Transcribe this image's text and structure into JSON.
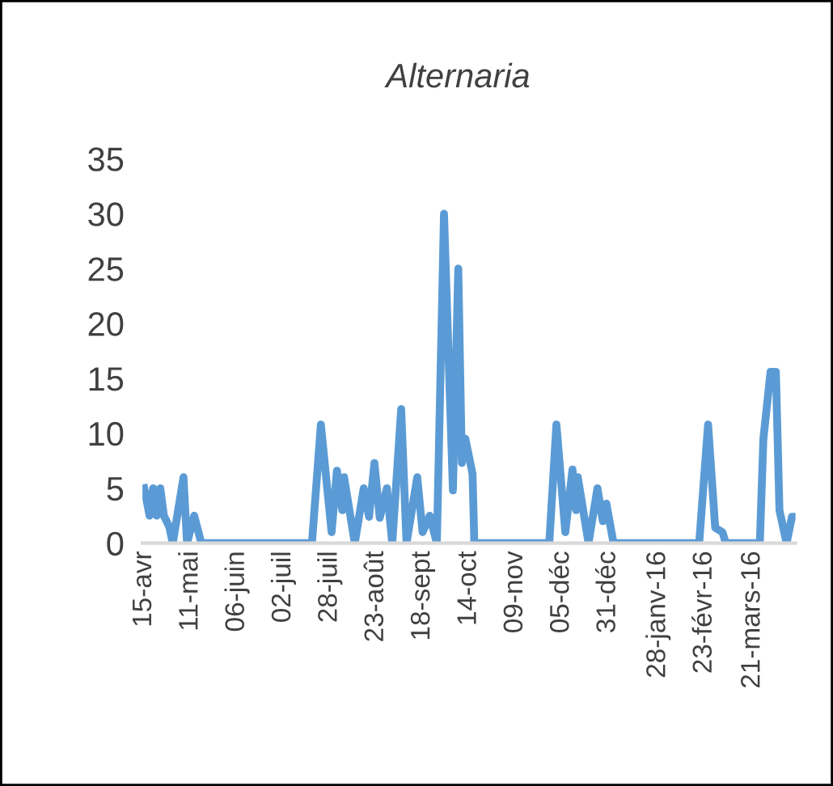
{
  "chart_data": {
    "type": "line",
    "title": "Alternaria",
    "x": [
      "2015-04-15",
      "2015-04-18",
      "2015-04-20",
      "2015-04-22",
      "2015-04-24",
      "2015-04-26",
      "2015-04-29",
      "2015-05-01",
      "2015-05-07",
      "2015-05-09",
      "2015-05-13",
      "2015-05-17",
      "2015-07-18",
      "2015-07-23",
      "2015-07-29",
      "2015-08-01",
      "2015-08-04",
      "2015-08-05",
      "2015-08-11",
      "2015-08-16",
      "2015-08-19",
      "2015-08-22",
      "2015-08-25",
      "2015-08-29",
      "2015-09-01",
      "2015-09-06",
      "2015-09-09",
      "2015-09-15",
      "2015-09-18",
      "2015-09-22",
      "2015-09-26",
      "2015-09-30",
      "2015-10-05",
      "2015-10-08",
      "2015-10-10",
      "2015-10-12",
      "2015-10-16",
      "2015-10-17",
      "2015-11-28",
      "2015-12-02",
      "2015-12-07",
      "2015-12-11",
      "2015-12-13",
      "2015-12-14",
      "2015-12-20",
      "2015-12-25",
      "2015-12-28",
      "2015-12-30",
      "2016-01-03",
      "2016-02-20",
      "2016-02-25",
      "2016-02-29",
      "2016-03-04",
      "2016-03-06",
      "2016-03-25",
      "2016-03-27",
      "2016-03-31",
      "2016-04-03",
      "2016-04-05",
      "2016-04-09",
      "2016-04-12",
      "2016-04-14"
    ],
    "series": [
      {
        "color": "#5b9bd5",
        "values": [
          5,
          2.5,
          5,
          2.5,
          5,
          2.5,
          1.5,
          0,
          6,
          0,
          2.5,
          0,
          0,
          10.8,
          1,
          6.6,
          3,
          6,
          0,
          5,
          2.4,
          7.3,
          2.3,
          5,
          0,
          12.2,
          0,
          6,
          1,
          2.5,
          0,
          30,
          4.8,
          25,
          7.3,
          9.5,
          6.3,
          0,
          0,
          10.8,
          1,
          6.7,
          3,
          6,
          0,
          5,
          2,
          3.6,
          0,
          0,
          10.8,
          1.4,
          1,
          0,
          0,
          9.5,
          15.6,
          15.6,
          3,
          0,
          2.4,
          2.4
        ]
      }
    ],
    "xlim": [
      "2015-04-14",
      "2016-04-14"
    ],
    "xticks": [
      {
        "value": "2015-04-15",
        "label": "15-avr"
      },
      {
        "value": "2015-05-11",
        "label": "11-mai"
      },
      {
        "value": "2015-06-06",
        "label": "06-juin"
      },
      {
        "value": "2015-07-02",
        "label": "02-juil"
      },
      {
        "value": "2015-07-28",
        "label": "28-juil"
      },
      {
        "value": "2015-08-23",
        "label": "23-août"
      },
      {
        "value": "2015-09-18",
        "label": "18-sept"
      },
      {
        "value": "2015-10-14",
        "label": "14-oct"
      },
      {
        "value": "2015-11-09",
        "label": "09-nov"
      },
      {
        "value": "2015-12-05",
        "label": "05-déc"
      },
      {
        "value": "2015-12-31",
        "label": "31-déc"
      },
      {
        "value": "2016-01-28",
        "label": "28-janv-16"
      },
      {
        "value": "2016-02-23",
        "label": "23-févr-16"
      },
      {
        "value": "2016-03-21",
        "label": "21-mars-16"
      }
    ],
    "ylim": [
      0,
      35
    ],
    "yticks": [
      0,
      5,
      10,
      15,
      20,
      25,
      30,
      35
    ],
    "grid": false,
    "marker": "none",
    "line_style": "solid"
  }
}
